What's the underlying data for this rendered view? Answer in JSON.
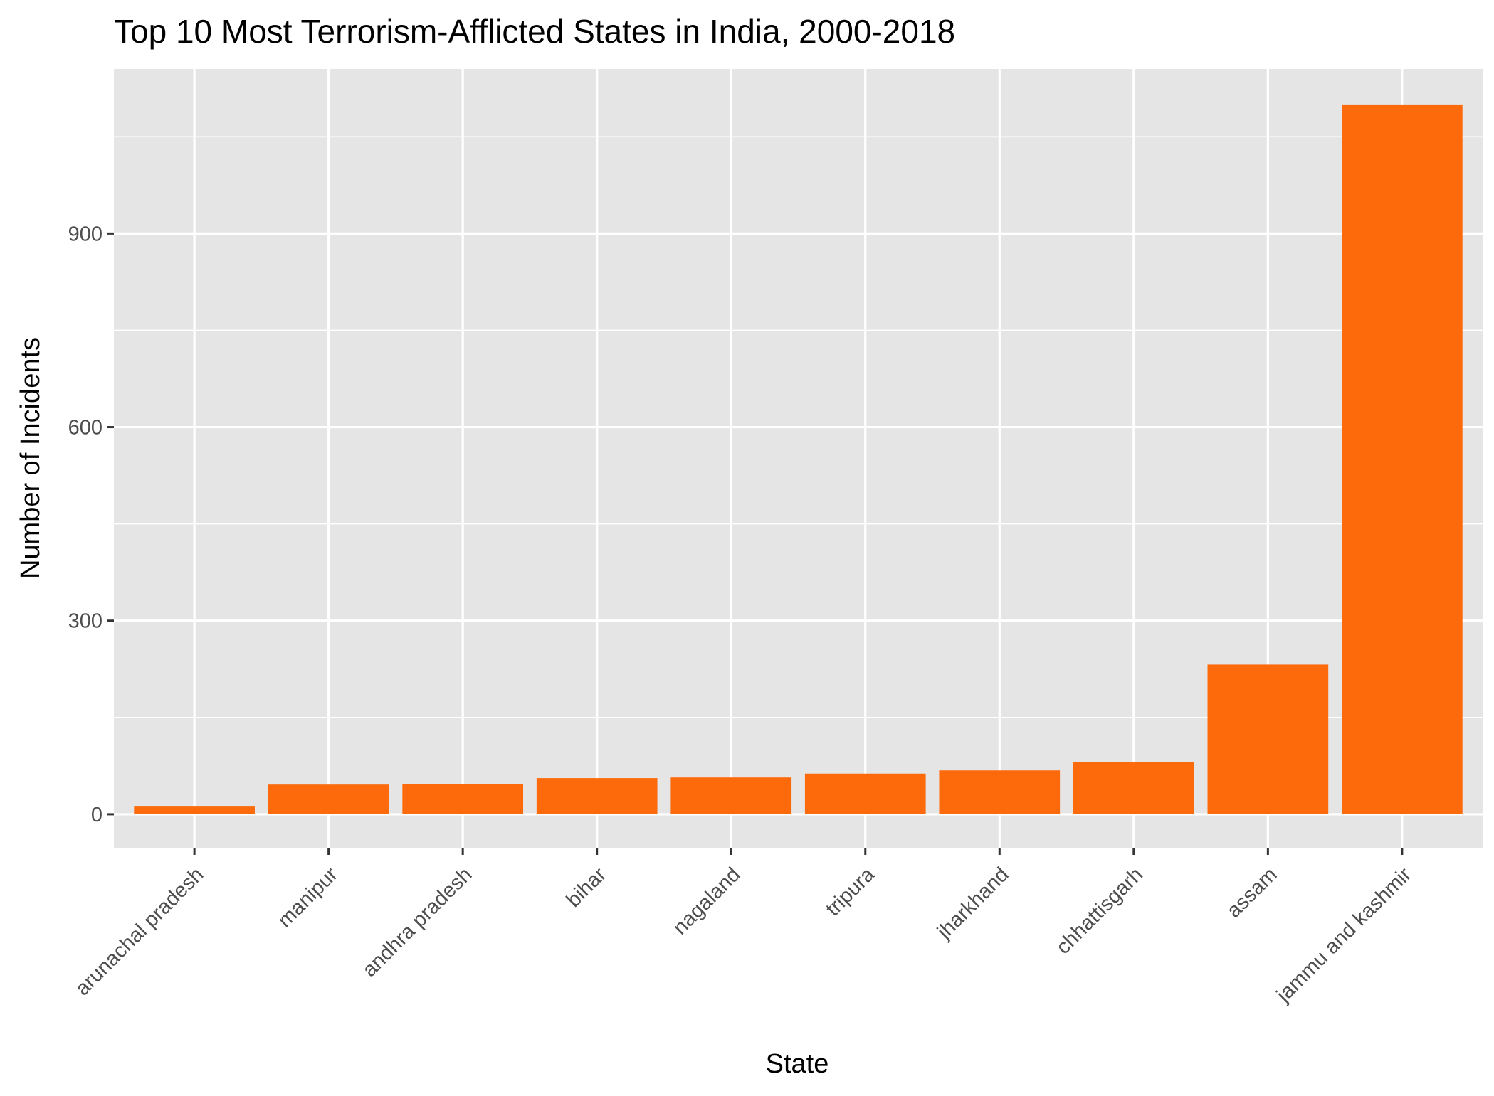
{
  "chart_data": {
    "type": "bar",
    "title": "Top 10 Most Terrorism-Afflicted States in India, 2000-2018",
    "xlabel": "State",
    "ylabel": "Number of Incidents",
    "categories": [
      "arunachal pradesh",
      "manipur",
      "andhra pradesh",
      "bihar",
      "nagaland",
      "tripura",
      "jharkhand",
      "chhattisgarh",
      "assam",
      "jammu and kashmir"
    ],
    "values": [
      13,
      46,
      47,
      56,
      57,
      63,
      68,
      81,
      232,
      1100
    ],
    "ylim": [
      -53,
      1155
    ],
    "yticks": [
      0,
      300,
      600,
      900
    ],
    "ytick_labels": [
      "0",
      "300",
      "600",
      "900"
    ],
    "grid": true,
    "legend": "none",
    "colors": {
      "bar": "#fc6a0c",
      "panel": "#e5e5e5",
      "grid": "#ffffff",
      "tick_label": "#4d4d4d"
    }
  }
}
